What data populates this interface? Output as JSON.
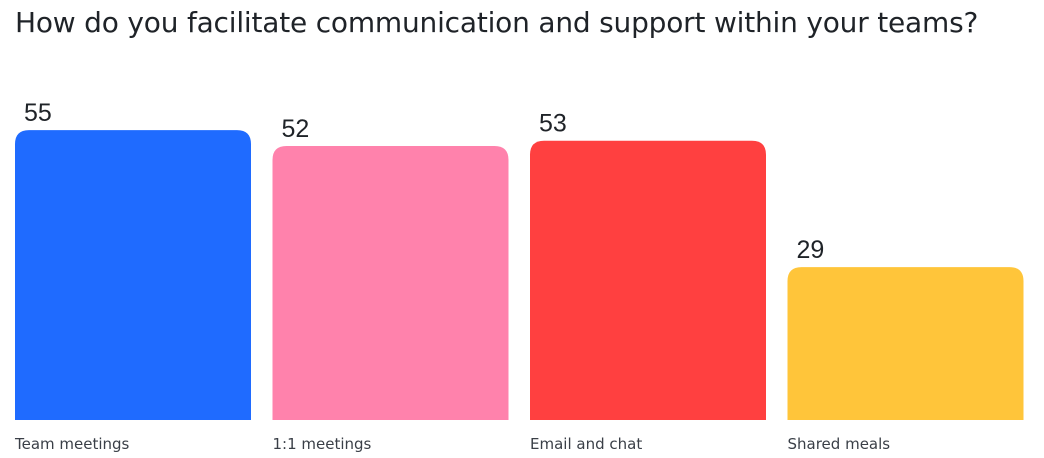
{
  "chart_data": {
    "type": "bar",
    "title": "How do you facilitate communication and support within your teams?",
    "categories": [
      "Team meetings",
      "1:1 meetings",
      "Email and chat",
      "Shared meals"
    ],
    "values": [
      55,
      52,
      53,
      29
    ],
    "colors": [
      "#1F6BFF",
      "#FF82AC",
      "#FF4040",
      "#FFC53A"
    ],
    "value_labels_shown": true,
    "grid": false,
    "legend": "none"
  }
}
